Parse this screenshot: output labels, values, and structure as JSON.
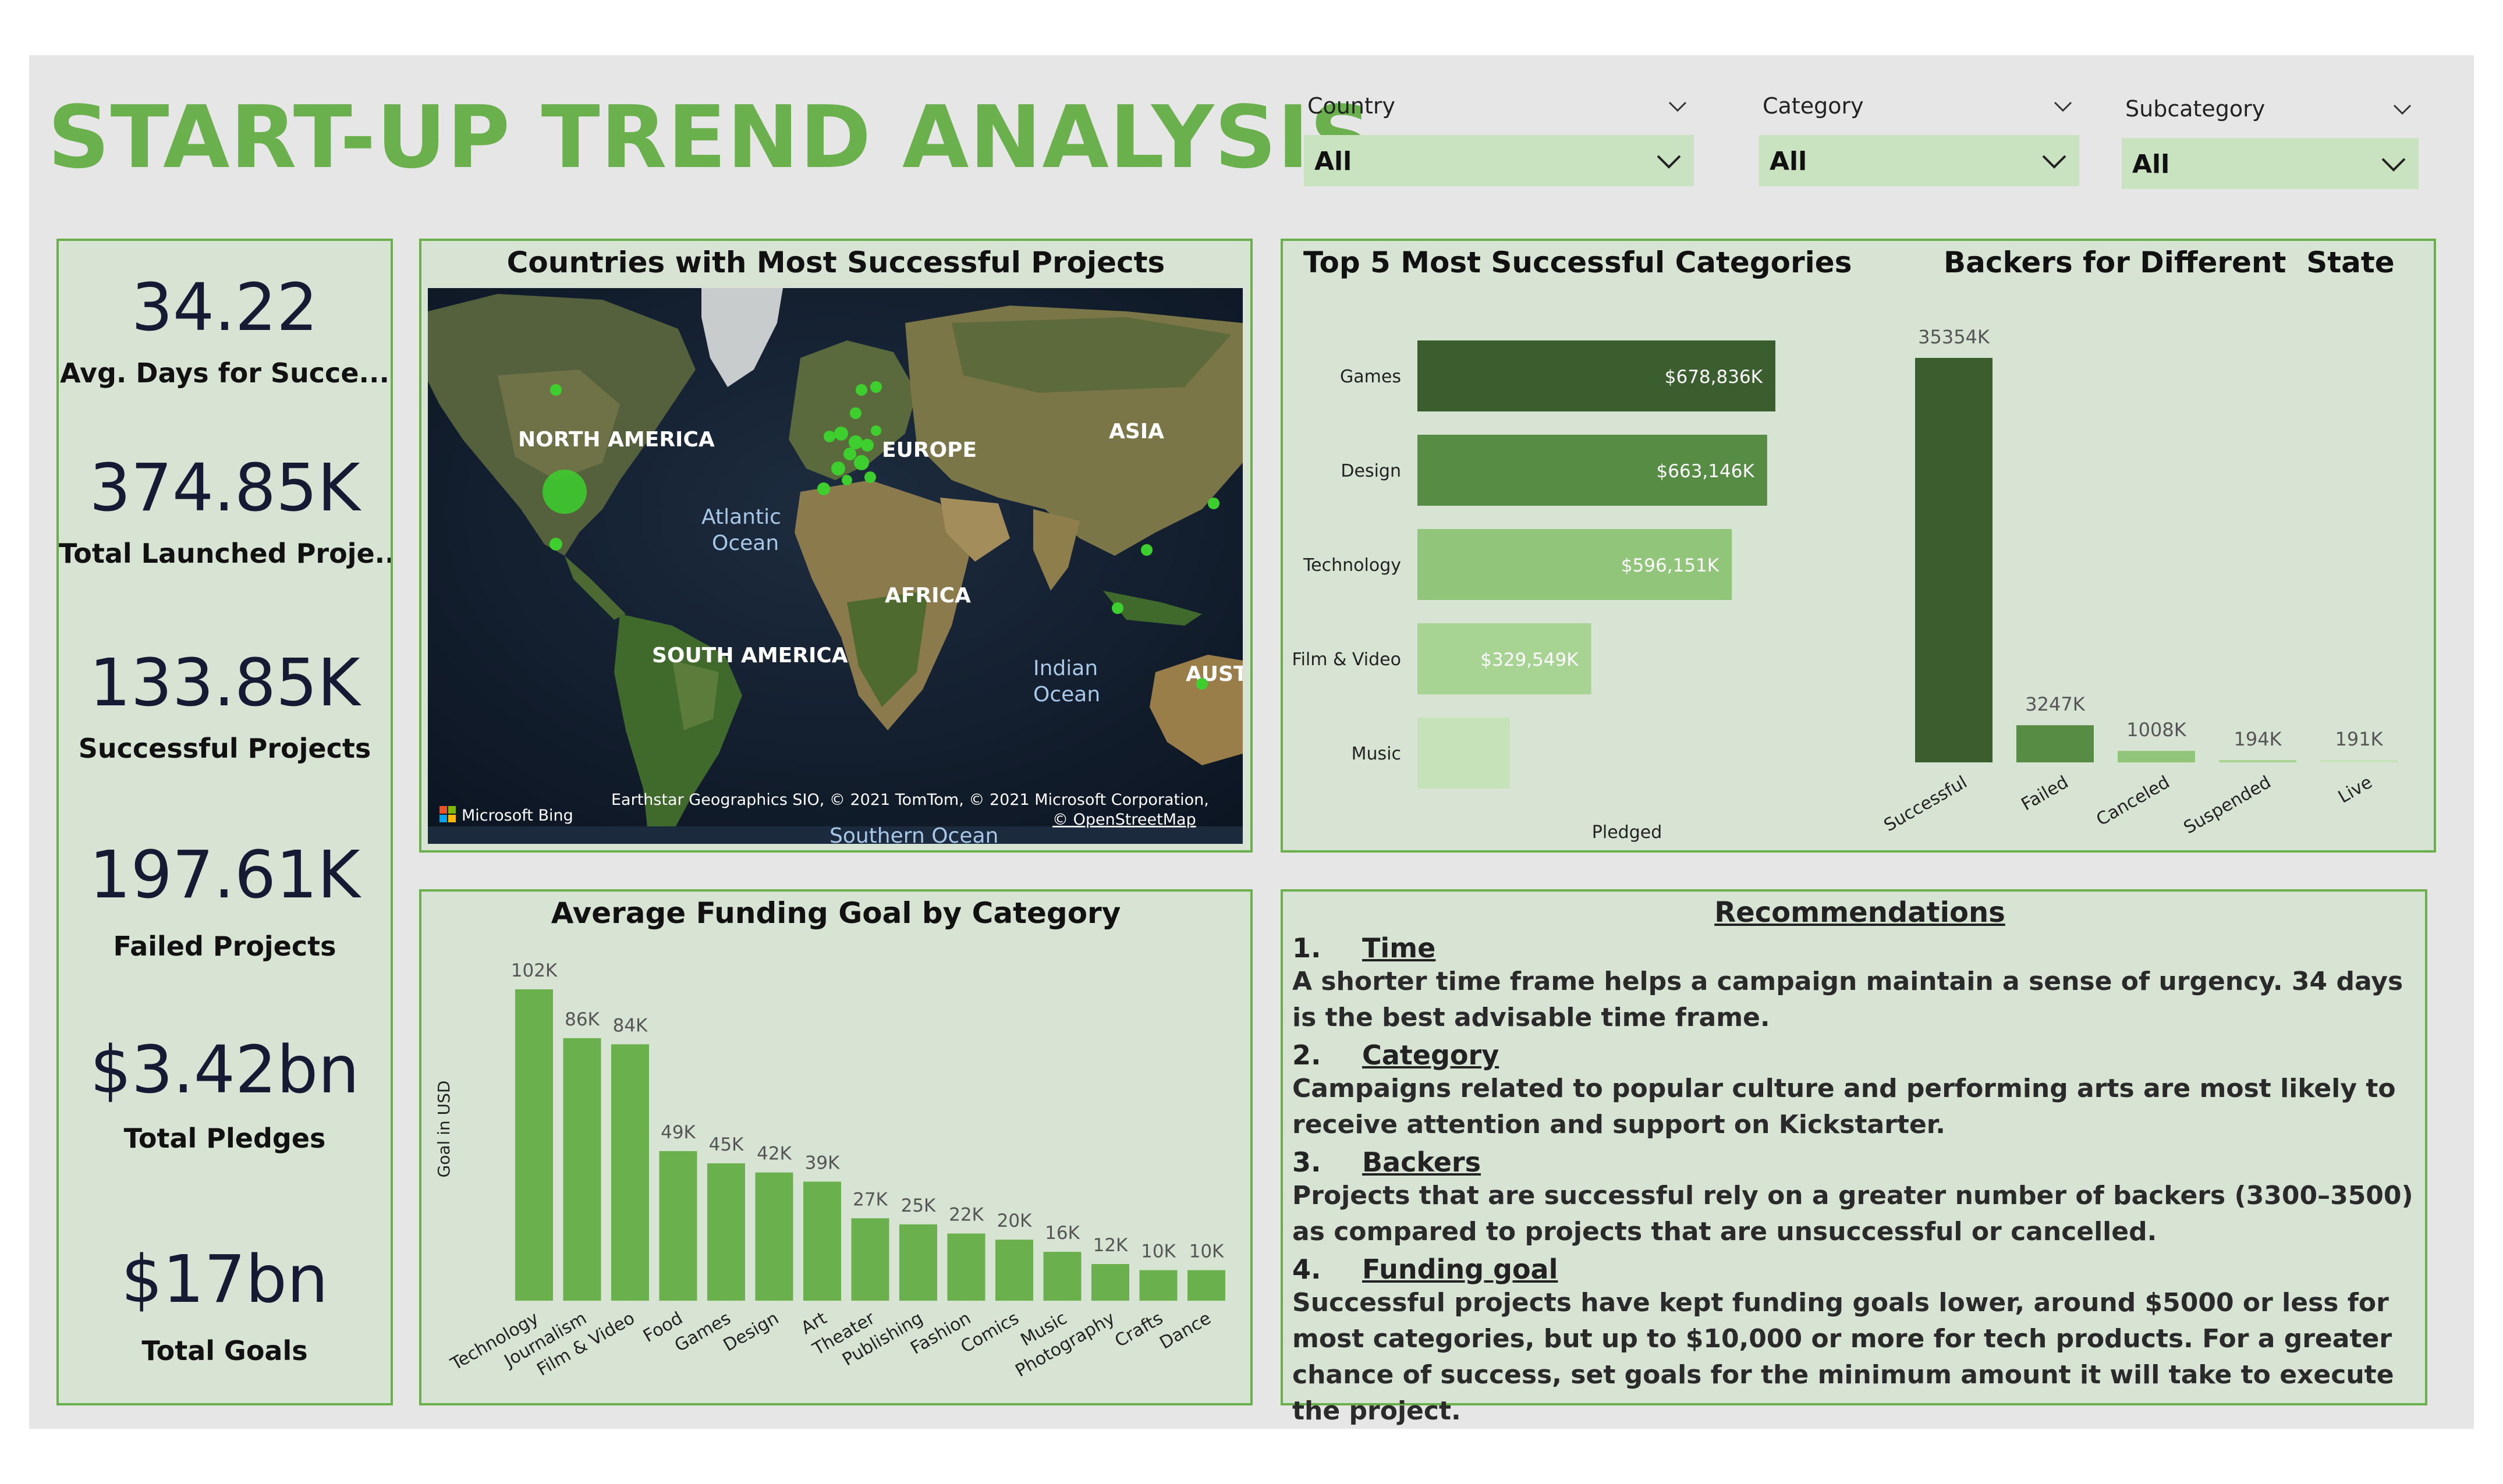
{
  "header": {
    "title": "START-UP TREND ANALYSIS"
  },
  "slicers": [
    {
      "label": "Country",
      "value": "All"
    },
    {
      "label": "Category",
      "value": "All"
    },
    {
      "label": "Subcategory",
      "value": "All"
    }
  ],
  "kpis": [
    {
      "value": "34.22",
      "label": "Avg. Days for Succe..."
    },
    {
      "value": "374.85K",
      "label": "Total Launched Proje..."
    },
    {
      "value": "133.85K",
      "label": "Successful Projects"
    },
    {
      "value": "197.61K",
      "label": "Failed Projects"
    },
    {
      "value": "$3.42bn",
      "label": "Total Pledges"
    },
    {
      "value": "$17bn",
      "label": "Total Goals"
    }
  ],
  "map": {
    "title": "Countries with Most Successful Projects",
    "labels": [
      "NORTH AMERICA",
      "EUROPE",
      "ASIA",
      "Atlantic",
      "Ocean",
      "AFRICA",
      "SOUTH AMERICA",
      "Indian",
      "Ocean",
      "AUST",
      "Southern Ocean"
    ],
    "attribution": "Earthstar Geographics SIO, © 2021 TomTom, © 2021 Microsoft Corporation,",
    "osm": "© OpenStreetMap",
    "brand": "Microsoft Bing",
    "colors": {
      "point": "#3ccf2e"
    }
  },
  "chart_data": [
    {
      "type": "bar",
      "orientation": "horizontal",
      "title": "Top 5 Most Successful Categories",
      "xlabel": "Pledged",
      "categories": [
        "Games",
        "Design",
        "Technology",
        "Film & Video",
        "Music"
      ],
      "values": [
        678836,
        663146,
        596151,
        329549,
        175000
      ],
      "data_labels": [
        "$678,836K",
        "$663,146K",
        "$596,151K",
        "$329,549K",
        ""
      ],
      "colors": [
        "#3b5e2f",
        "#578c45",
        "#91c57a",
        "#a8d493",
        "#c6e2b8"
      ]
    },
    {
      "type": "bar",
      "title": "Backers for Different  State",
      "categories": [
        "Successful",
        "Failed",
        "Canceled",
        "Suspended",
        "Live"
      ],
      "values": [
        35354,
        3247,
        1008,
        194,
        191
      ],
      "data_labels": [
        "35354K",
        "3247K",
        "1008K",
        "194K",
        "191K"
      ],
      "colors": [
        "#3b5e2f",
        "#578c45",
        "#91c57a",
        "#a8d493",
        "#c6e2b8"
      ]
    },
    {
      "type": "bar",
      "title": "Average Funding Goal by Category",
      "ylabel": "Goal in USD",
      "categories": [
        "Technology",
        "Journalism",
        "Film & Video",
        "Food",
        "Games",
        "Design",
        "Art",
        "Theater",
        "Publishing",
        "Fashion",
        "Comics",
        "Music",
        "Photography",
        "Crafts",
        "Dance"
      ],
      "values": [
        102,
        86,
        84,
        49,
        45,
        42,
        39,
        27,
        25,
        22,
        20,
        16,
        12,
        10,
        10
      ],
      "data_labels": [
        "102K",
        "86K",
        "84K",
        "49K",
        "45K",
        "42K",
        "39K",
        "27K",
        "25K",
        "22K",
        "20K",
        "16K",
        "12K",
        "10K",
        "10K"
      ],
      "colors": {
        "bar": "#6ab04c"
      }
    }
  ],
  "recommendations": {
    "title": "Recommendations",
    "items": [
      {
        "num": "1.",
        "title": "Time",
        "text": "A shorter time frame helps a campaign maintain a sense of urgency. 34 days is the best advisable time frame."
      },
      {
        "num": "2.",
        "title": "Category",
        "text": "Campaigns related to popular culture and performing arts are most likely to receive attention and support on Kickstarter."
      },
      {
        "num": "3.",
        "title": "Backers",
        "text": "Projects that are successful rely on a greater number of backers (3300–3500) as compared to projects that are unsuccessful or cancelled."
      },
      {
        "num": "4.",
        "title": "Funding goal",
        "text": "Successful projects have kept funding goals lower, around $5000 or less for most categories, but up to $10,000 or more for tech products. For a greater chance of success, set goals for the minimum amount it will take to execute the project."
      }
    ]
  },
  "theme": {
    "accent": "#6ab04c",
    "panel": "#d7e3d3",
    "canvas": "#e6e6e6",
    "slicer": "#c9e2bf"
  }
}
